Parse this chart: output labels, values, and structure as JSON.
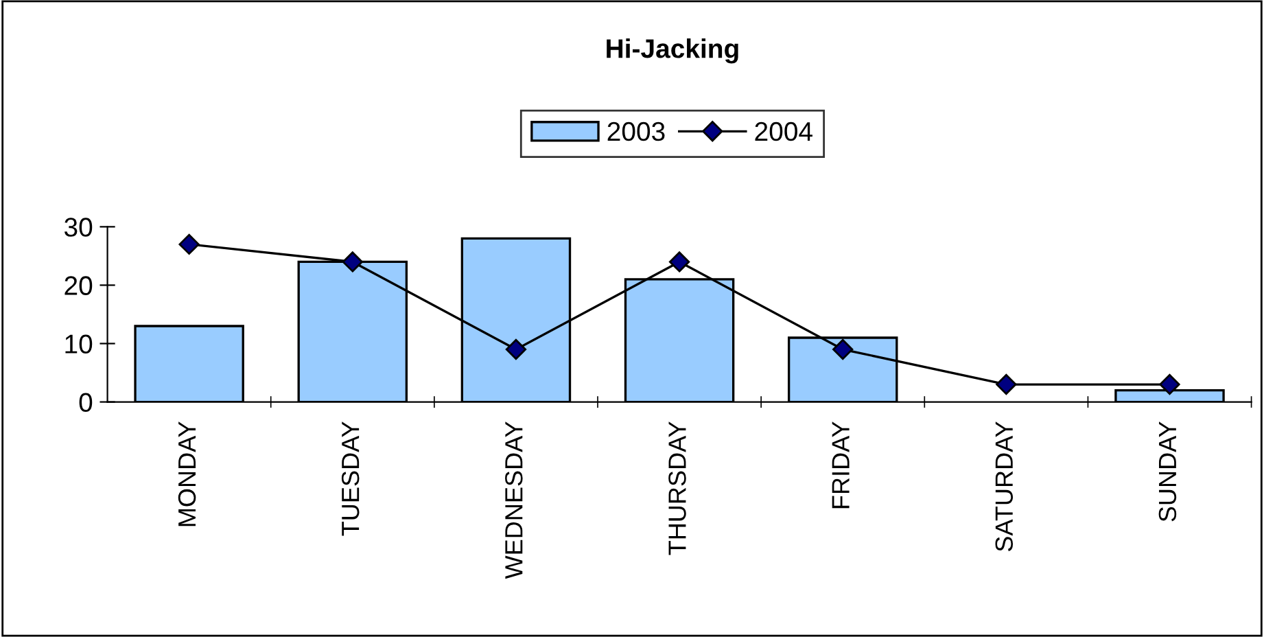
{
  "chart_data": {
    "type": "bar",
    "title": "Hi-Jacking",
    "categories": [
      "MONDAY",
      "TUESDAY",
      "WEDNESDAY",
      "THURSDAY",
      "FRIDAY",
      "SATURDAY",
      "SUNDAY"
    ],
    "series": [
      {
        "name": "2003",
        "color": "#99ccff",
        "values": [
          13,
          24,
          28,
          21,
          11,
          0,
          2
        ]
      },
      {
        "name": "2004",
        "type": "line",
        "color": "#000080",
        "values": [
          27,
          24,
          9,
          24,
          9,
          3,
          3
        ]
      }
    ],
    "ylim": [
      0,
      30
    ],
    "yticks": [
      0,
      10,
      20,
      30
    ],
    "grid": false,
    "legend": "top",
    "marker": "diamond",
    "line_style": "solid"
  }
}
